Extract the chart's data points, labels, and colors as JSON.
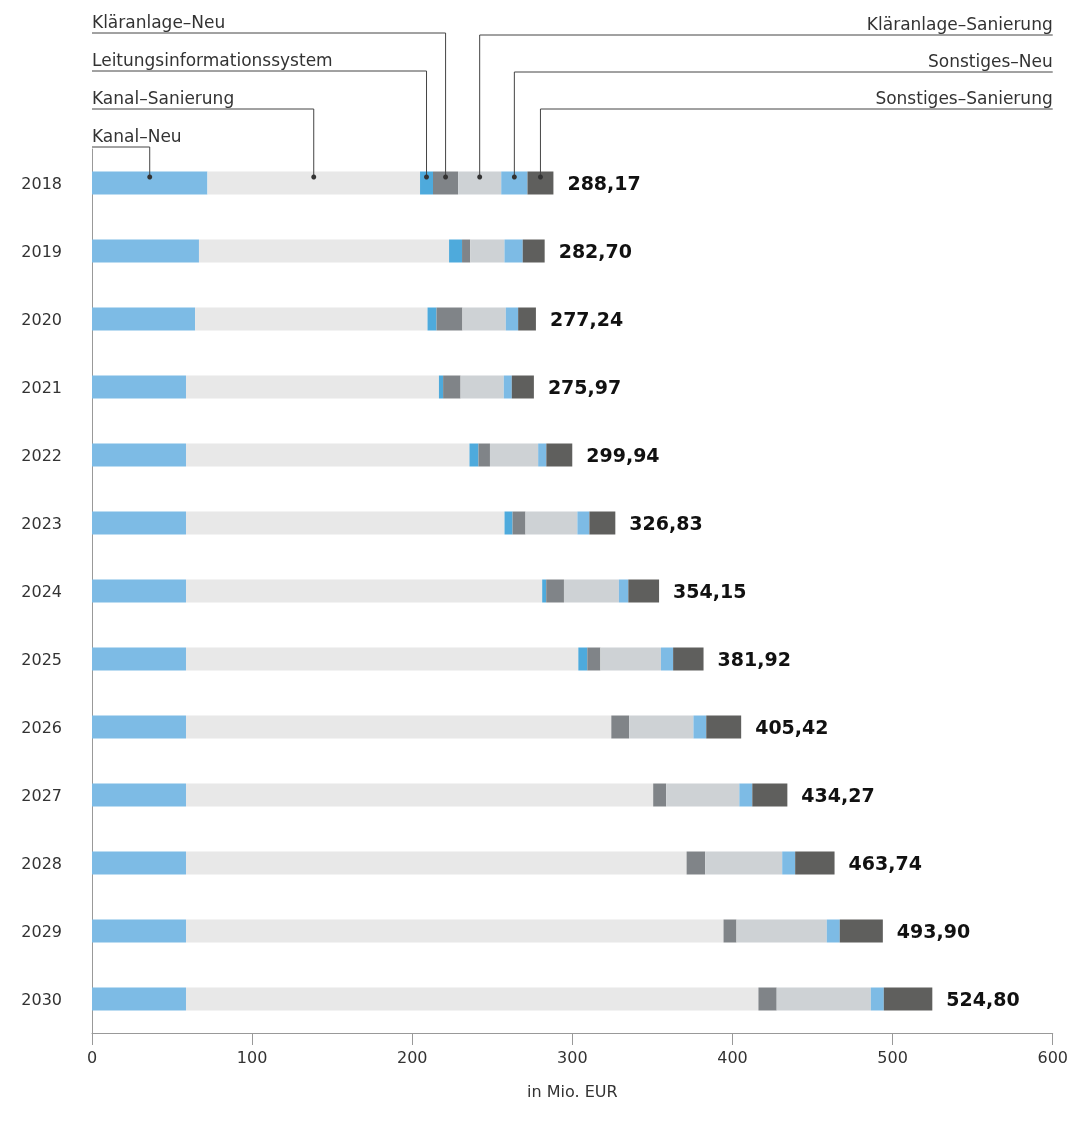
{
  "chart_data": {
    "type": "bar",
    "orientation": "horizontal",
    "stacked": true,
    "xlabel": "in Mio. EUR",
    "categories": [
      "2018",
      "2019",
      "2020",
      "2021",
      "2022",
      "2023",
      "2024",
      "2025",
      "2026",
      "2027",
      "2028",
      "2029",
      "2030"
    ],
    "series": [
      {
        "name": "Kanal–Neu",
        "color": "#7dbbe5",
        "values": [
          72.1,
          66.8,
          64.4,
          58.7,
          58.7,
          58.7,
          58.7,
          58.7,
          58.7,
          58.7,
          58.7,
          58.7,
          58.7
        ]
      },
      {
        "name": "Kanal–Sanierung",
        "color": "#e8e8e8",
        "values": [
          132.77,
          156.2,
          145.14,
          157.97,
          177.04,
          198.93,
          222.45,
          245.02,
          265.62,
          291.77,
          312.64,
          335.7,
          357.5
        ]
      },
      {
        "name": "Leitungsinformationssystem",
        "color": "#4eaadc",
        "values": [
          8.1,
          8.1,
          5.6,
          2.6,
          5.6,
          5.0,
          2.5,
          5.6,
          null,
          null,
          null,
          null,
          null
        ]
      },
      {
        "name": "Kläranlage–Neu",
        "color": "#808488",
        "values": [
          15.7,
          5.1,
          16.2,
          10.9,
          7.2,
          8.1,
          11.1,
          8.2,
          11.1,
          8.1,
          11.6,
          8.1,
          11.4
        ]
      },
      {
        "name": "Kläranlage–Sanierung",
        "color": "#ced2d5",
        "values": [
          26.9,
          21.4,
          27.1,
          27.0,
          30.1,
          32.4,
          34.3,
          37.8,
          40.2,
          45.7,
          48.1,
          56.4,
          58.8
        ]
      },
      {
        "name": "Sonstiges–Neu",
        "color": "#7dbbe5",
        "values": [
          16.4,
          11.4,
          7.7,
          5.0,
          5.1,
          7.5,
          5.9,
          7.6,
          8.0,
          8.1,
          8.1,
          8.1,
          8.1
        ]
      },
      {
        "name": "Sonstiges–Sanierung",
        "color": "#5f5f5d",
        "values": [
          16.2,
          13.7,
          11.1,
          13.8,
          16.2,
          16.2,
          19.2,
          19.0,
          21.8,
          21.9,
          24.6,
          26.9,
          30.3
        ]
      }
    ],
    "totals": [
      "288,17",
      "282,70",
      "277,24",
      "275,97",
      "299,94",
      "326,83",
      "354,15",
      "381,92",
      "405,42",
      "434,27",
      "463,74",
      "493,90",
      "524,80"
    ],
    "xlim": [
      0,
      600
    ],
    "xticks": [
      0,
      100,
      200,
      300,
      400,
      500,
      600
    ],
    "grid": false,
    "legend": "top"
  }
}
